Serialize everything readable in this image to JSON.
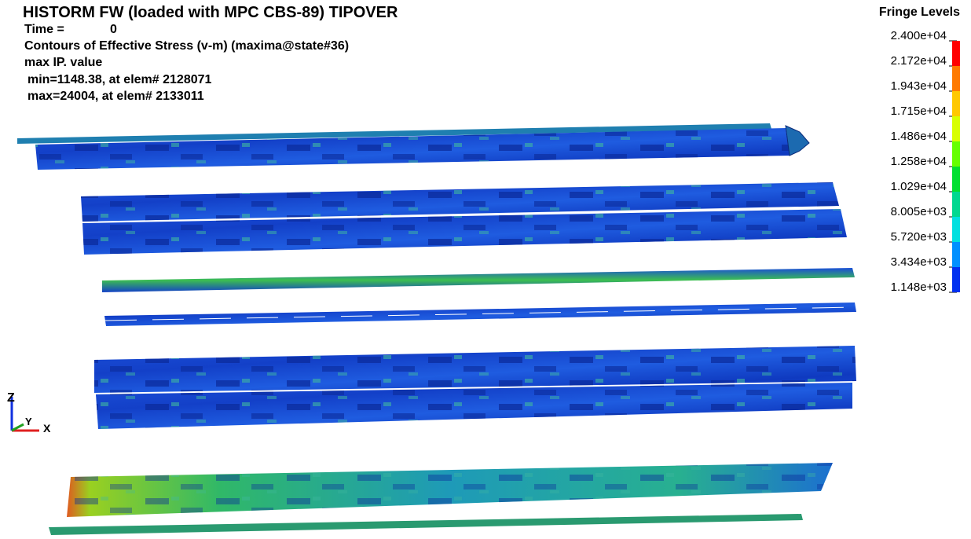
{
  "header": {
    "title": "HISTORM FW (loaded with MPC CBS-89) TIPOVER",
    "time_label": "Time =",
    "time_value": "0",
    "contours": "Contours of Effective Stress (v-m) (maxima@state#36)",
    "value_type": "max IP. value",
    "min_line": "min=1148.38, at elem# 2128071",
    "max_line": "max=24004, at elem# 2133011"
  },
  "fringe": {
    "title": "Fringe Levels",
    "levels": [
      "2.400e+04",
      "2.172e+04",
      "1.943e+04",
      "1.715e+04",
      "1.486e+04",
      "1.258e+04",
      "1.029e+04",
      "8.005e+03",
      "5.720e+03",
      "3.434e+03",
      "1.148e+03"
    ],
    "colors": [
      "#ff0000",
      "#ff7a00",
      "#ffc800",
      "#d8ff00",
      "#66ff00",
      "#00e030",
      "#00d890",
      "#00e0e0",
      "#0090ff",
      "#0030f0"
    ]
  },
  "triad": {
    "z": "Z",
    "y": "Y",
    "x": "X"
  }
}
